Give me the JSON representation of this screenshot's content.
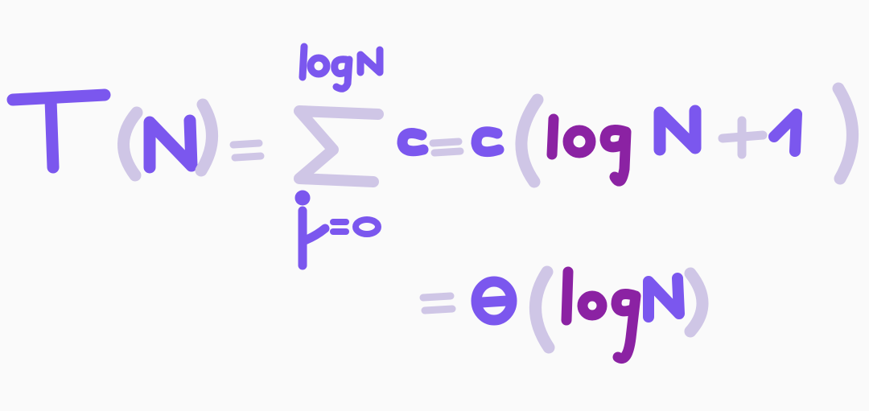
{
  "equation": {
    "line1": {
      "lhs_function": "T",
      "lhs_argument": "N",
      "equals": "=",
      "sum_upper_limit": "logN",
      "sum_lower_limit": "j=0",
      "summand": "c",
      "result_coefficient": "c",
      "result_log": "log",
      "result_var": "N",
      "result_plus": "+",
      "result_one": "1"
    },
    "line2": {
      "equals": "=",
      "theta": "Θ",
      "log": "log",
      "var": "N"
    }
  },
  "colors": {
    "background": "#fafafa",
    "violet": "#7b57ee",
    "lavender": "#cfc6e6",
    "purple": "#8b22a3"
  }
}
